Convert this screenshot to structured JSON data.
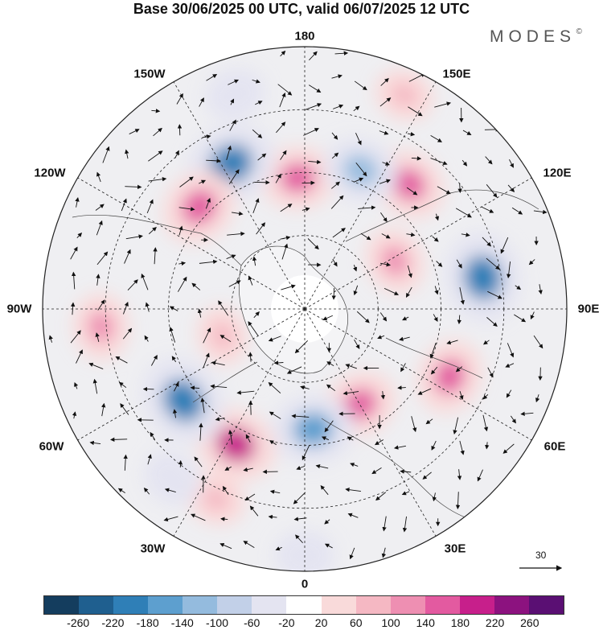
{
  "title": "Base 30/06/2025 00 UTC, valid 06/07/2025 12 UTC",
  "brand": "MODES",
  "brand_mark": "©",
  "longitude_labels": {
    "lon_180": "180",
    "lon_150e": "150E",
    "lon_120e": "120E",
    "lon_90e": "90E",
    "lon_60e": "60E",
    "lon_30e": "30E",
    "lon_0": "0",
    "lon_30w": "30W",
    "lon_60w": "60W",
    "lon_90w": "90W",
    "lon_120w": "120W",
    "lon_150w": "150W"
  },
  "reference_vector": {
    "label": "30"
  },
  "colorbar": {
    "colors": [
      "#143d5e",
      "#1f5f8f",
      "#2f7fb7",
      "#5d9fcf",
      "#94bbde",
      "#c2d0e8",
      "#e4e4f1",
      "#ffffff",
      "#f9dada",
      "#f5b8c3",
      "#ee8fb2",
      "#e35aa0",
      "#c71f8b",
      "#8c127f",
      "#5a0f73"
    ],
    "tick_labels": [
      "-260",
      "-220",
      "-180",
      "-140",
      "-100",
      "-60",
      "-20",
      "20",
      "60",
      "100",
      "140",
      "180",
      "220",
      "260"
    ]
  },
  "map_data": {
    "projection": "north-polar-stereographic",
    "anomalies": [
      {
        "name": "pos-north-center",
        "r": 0.5,
        "theta": 183,
        "value": 140
      },
      {
        "name": "neg-top-left",
        "r": 0.62,
        "theta": 207,
        "value": -220
      },
      {
        "name": "pos-left-upper",
        "r": 0.56,
        "theta": 226,
        "value": 160
      },
      {
        "name": "neg-top-left-2",
        "r": 0.86,
        "theta": 198,
        "value": -60
      },
      {
        "name": "pos-upper-right",
        "r": 0.62,
        "theta": 140,
        "value": 140
      },
      {
        "name": "neg-upper-right",
        "r": 0.57,
        "theta": 158,
        "value": -140
      },
      {
        "name": "pos-top-right",
        "r": 0.9,
        "theta": 155,
        "value": 60
      },
      {
        "name": "neg-right",
        "r": 0.69,
        "theta": 100,
        "value": -220
      },
      {
        "name": "pos-right-inner",
        "r": 0.39,
        "theta": 118,
        "value": 100
      },
      {
        "name": "pos-right-lower",
        "r": 0.61,
        "theta": 65,
        "value": 140
      },
      {
        "name": "pos-lower-center",
        "r": 0.42,
        "theta": 30,
        "value": 140
      },
      {
        "name": "neg-lower",
        "r": 0.46,
        "theta": 4,
        "value": -180
      },
      {
        "name": "pos-lower-left",
        "r": 0.58,
        "theta": -27,
        "value": 180
      },
      {
        "name": "neg-left-lower",
        "r": 0.58,
        "theta": -53,
        "value": -220
      },
      {
        "name": "pos-left",
        "r": 0.78,
        "theta": -85,
        "value": 100
      },
      {
        "name": "pos-left-mid",
        "r": 0.33,
        "theta": -72,
        "value": 60
      },
      {
        "name": "neg-bottom",
        "r": 0.94,
        "theta": 0,
        "value": -60
      },
      {
        "name": "pos-bottom-left",
        "r": 0.8,
        "theta": -25,
        "value": 60
      },
      {
        "name": "neg-left-small",
        "r": 0.82,
        "theta": -38,
        "value": -60
      }
    ]
  }
}
